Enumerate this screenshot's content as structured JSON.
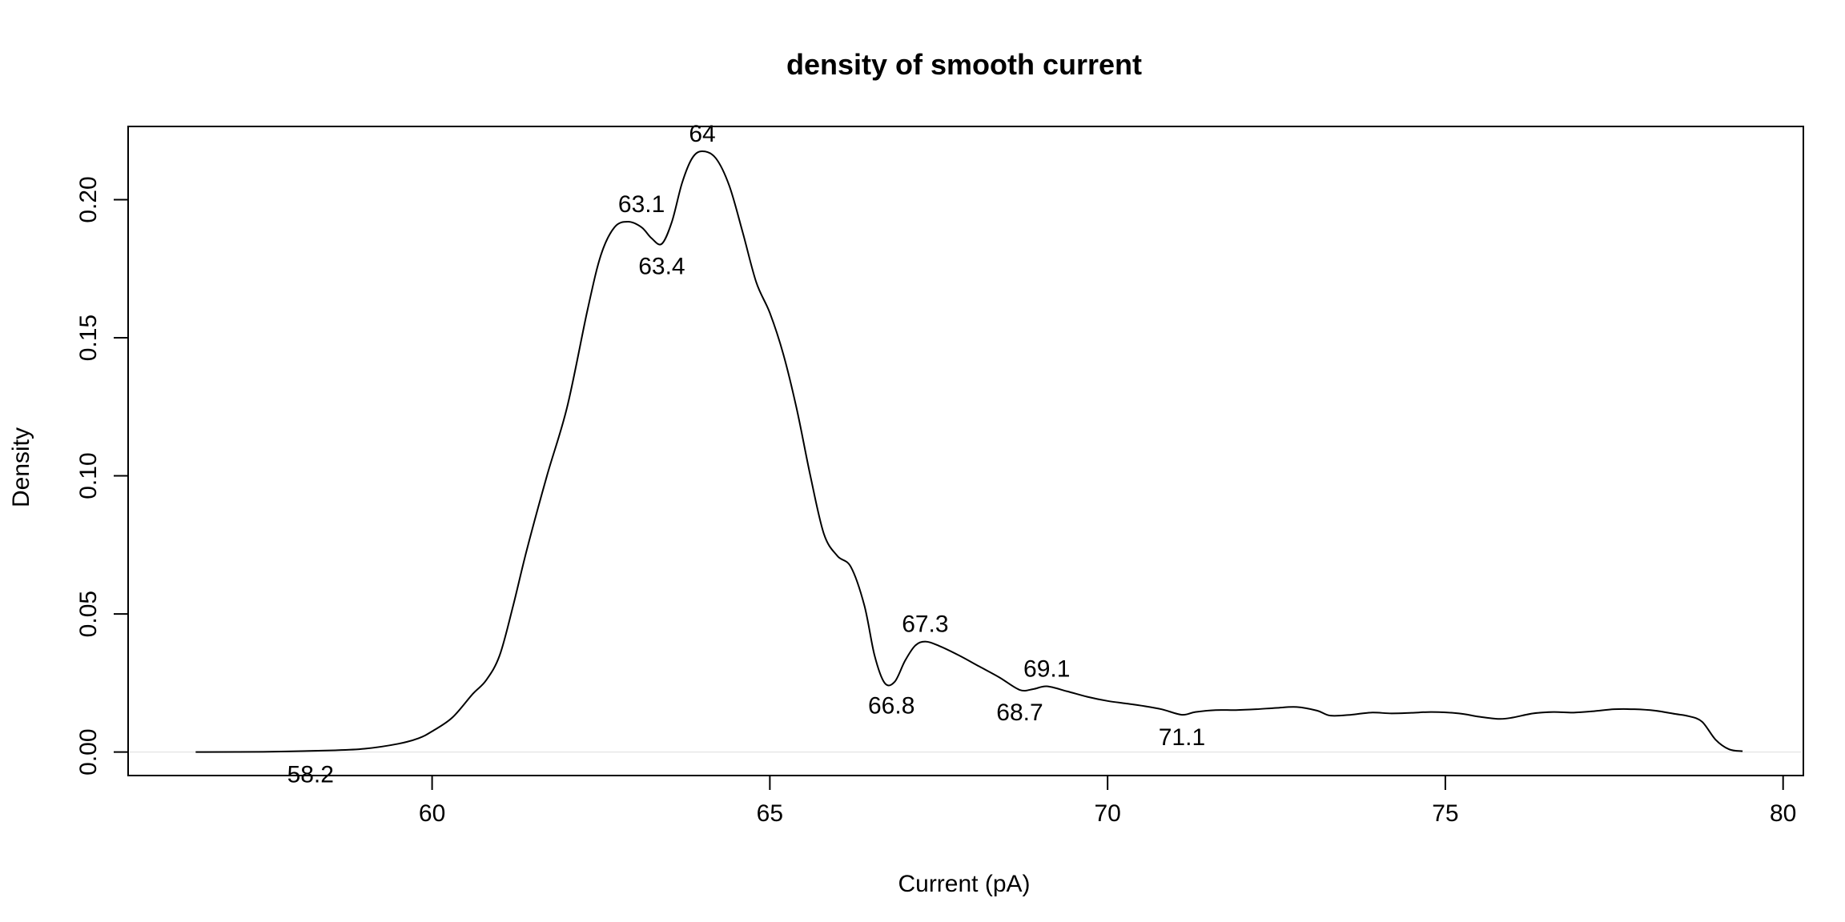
{
  "chart_data": {
    "type": "line",
    "title": "density of smooth current",
    "xlabel": "Current (pA)",
    "ylabel": "Density",
    "xlim": [
      55.5,
      80.3
    ],
    "ylim": [
      -0.0085,
      0.2265
    ],
    "xticks": [
      60,
      65,
      70,
      75,
      80
    ],
    "yticks": [
      0.0,
      0.05,
      0.1,
      0.15,
      0.2
    ],
    "xtick_labels": [
      "60",
      "65",
      "70",
      "75",
      "80"
    ],
    "ytick_labels": [
      "0.00",
      "0.05",
      "0.10",
      "0.15",
      "0.20"
    ],
    "grid": false,
    "series": [
      {
        "x": [
          56.5,
          57.5,
          58.5,
          59.0,
          59.5,
          59.8,
          60.0,
          60.3,
          60.6,
          60.8,
          61.0,
          61.2,
          61.4,
          61.7,
          62.0,
          62.3,
          62.5,
          62.7,
          62.9,
          63.1,
          63.25,
          63.4,
          63.55,
          63.7,
          63.85,
          64.0,
          64.2,
          64.4,
          64.6,
          64.8,
          65.0,
          65.2,
          65.4,
          65.6,
          65.8,
          66.0,
          66.2,
          66.4,
          66.55,
          66.7,
          66.85,
          67.0,
          67.15,
          67.3,
          67.5,
          67.8,
          68.1,
          68.4,
          68.7,
          68.9,
          69.1,
          69.4,
          69.7,
          70.0,
          70.3,
          70.5,
          70.8,
          71.1,
          71.3,
          71.6,
          71.9,
          72.2,
          72.5,
          72.8,
          73.1,
          73.3,
          73.6,
          73.9,
          74.2,
          74.5,
          74.8,
          75.2,
          75.5,
          75.8,
          76.0,
          76.3,
          76.6,
          76.9,
          77.2,
          77.5,
          77.8,
          78.1,
          78.4,
          78.6,
          78.8,
          79.0,
          79.2,
          79.4
        ],
        "y": [
          0.0,
          0.0001,
          0.0006,
          0.0012,
          0.003,
          0.005,
          0.0075,
          0.0125,
          0.021,
          0.026,
          0.035,
          0.053,
          0.073,
          0.1,
          0.125,
          0.16,
          0.18,
          0.19,
          0.192,
          0.19,
          0.186,
          0.184,
          0.192,
          0.206,
          0.215,
          0.2175,
          0.215,
          0.205,
          0.188,
          0.17,
          0.159,
          0.144,
          0.124,
          0.1,
          0.079,
          0.071,
          0.067,
          0.053,
          0.035,
          0.025,
          0.0255,
          0.033,
          0.0385,
          0.04,
          0.0385,
          0.035,
          0.031,
          0.027,
          0.0225,
          0.0228,
          0.0238,
          0.022,
          0.02,
          0.0185,
          0.0175,
          0.0168,
          0.0155,
          0.0135,
          0.0145,
          0.0152,
          0.0152,
          0.0155,
          0.016,
          0.0163,
          0.015,
          0.0132,
          0.0135,
          0.0143,
          0.014,
          0.0142,
          0.0145,
          0.014,
          0.0128,
          0.012,
          0.0125,
          0.014,
          0.0145,
          0.0143,
          0.0148,
          0.0155,
          0.0155,
          0.015,
          0.0138,
          0.013,
          0.011,
          0.0045,
          0.001,
          0.0003
        ]
      }
    ],
    "annotations": [
      {
        "text": "58.2",
        "x": 58.2,
        "y": 0.0,
        "position": "below"
      },
      {
        "text": "63.1",
        "x": 63.1,
        "y": 0.192,
        "position": "above"
      },
      {
        "text": "63.4",
        "x": 63.4,
        "y": 0.184,
        "position": "below"
      },
      {
        "text": "64",
        "x": 64.0,
        "y": 0.2175,
        "position": "above"
      },
      {
        "text": "66.8",
        "x": 66.8,
        "y": 0.025,
        "position": "below"
      },
      {
        "text": "67.3",
        "x": 67.3,
        "y": 0.04,
        "position": "above"
      },
      {
        "text": "68.7",
        "x": 68.7,
        "y": 0.0225,
        "position": "below"
      },
      {
        "text": "69.1",
        "x": 69.1,
        "y": 0.0238,
        "position": "above"
      },
      {
        "text": "71.1",
        "x": 71.1,
        "y": 0.0135,
        "position": "below"
      }
    ],
    "colors": {
      "line": "#000000",
      "frame": "#000000",
      "zero_line": "#e6e6e6"
    }
  }
}
